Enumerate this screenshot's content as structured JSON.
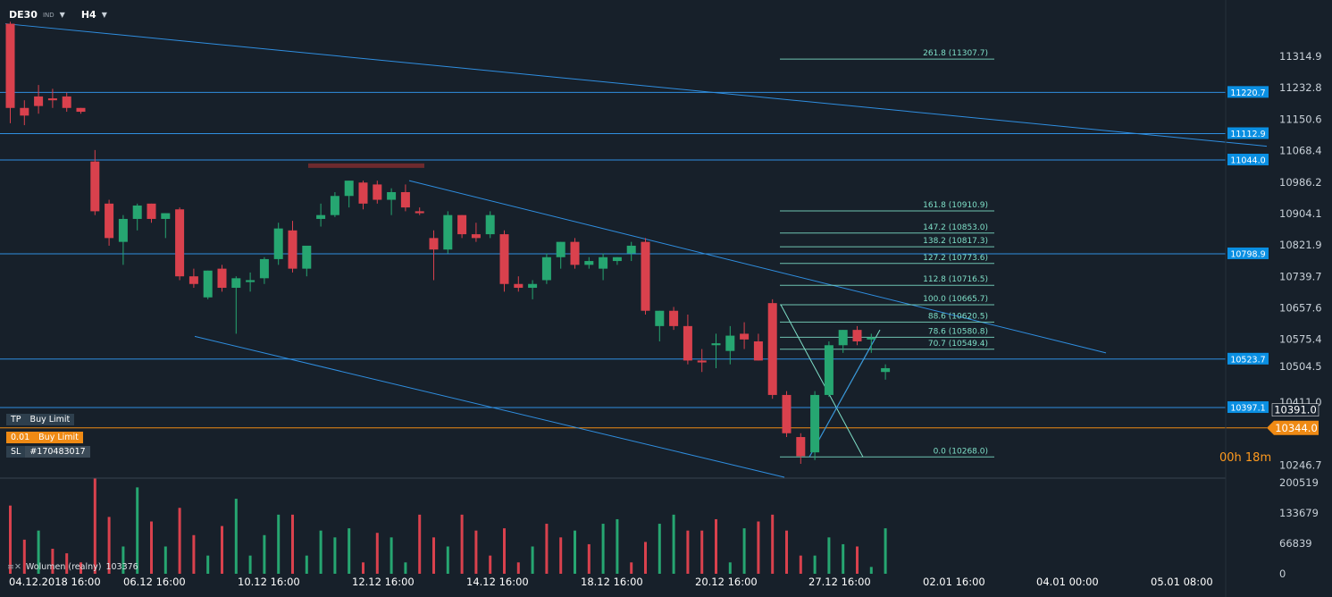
{
  "header": {
    "symbol": "DE30",
    "symbol_sub": "IND",
    "timeframe": "H4"
  },
  "colors": {
    "background": "#17202a",
    "up": "#26a671",
    "down": "#d9414d",
    "channel": "#2f8ee0",
    "fib": "#7fe0c8",
    "badge": "#0a8fe2",
    "buy_limit": "#ef8a14",
    "grid_text": "#c8d0d8"
  },
  "chart_data": {
    "type": "candlestick",
    "symbol": "DE30",
    "timeframe": "H4",
    "ylim": [
      10215,
      11420
    ],
    "y_ticks": [
      11314.9,
      11232.8,
      11150.6,
      11068.4,
      10986.2,
      10904.1,
      10821.9,
      10739.7,
      10657.6,
      10575.4,
      10504.5,
      10411.0,
      10246.7
    ],
    "x_ticks": [
      "04.12.2018 16:00",
      "06.12 16:00",
      "10.12 16:00",
      "12.12 16:00",
      "14.12 16:00",
      "18.12 16:00",
      "20.12 16:00",
      "27.12 16:00",
      "02.01 16:00",
      "04.01 00:00",
      "05.01 08:00"
    ],
    "candles": [
      [
        11400,
        11405,
        11140,
        11180
      ],
      [
        11180,
        11200,
        11135,
        11160
      ],
      [
        11210,
        11240,
        11165,
        11185
      ],
      [
        11205,
        11230,
        11180,
        11200
      ],
      [
        11210,
        11220,
        11170,
        11180
      ],
      [
        11180,
        11180,
        11165,
        11170
      ],
      [
        11040,
        11070,
        10900,
        10910
      ],
      [
        10930,
        10940,
        10820,
        10840
      ],
      [
        10830,
        10900,
        10770,
        10890
      ],
      [
        10890,
        10930,
        10860,
        10925
      ],
      [
        10930,
        10930,
        10880,
        10890
      ],
      [
        10890,
        10905,
        10840,
        10905
      ],
      [
        10915,
        10920,
        10730,
        10740
      ],
      [
        10740,
        10760,
        10710,
        10720
      ],
      [
        10685,
        10755,
        10680,
        10755
      ],
      [
        10760,
        10770,
        10700,
        10710
      ],
      [
        10710,
        10740,
        10590,
        10735
      ],
      [
        10725,
        10750,
        10700,
        10730
      ],
      [
        10735,
        10790,
        10720,
        10785
      ],
      [
        10785,
        10880,
        10770,
        10865
      ],
      [
        10860,
        10885,
        10750,
        10760
      ],
      [
        10760,
        10810,
        10740,
        10820
      ],
      [
        10890,
        10930,
        10870,
        10900
      ],
      [
        10900,
        10960,
        10895,
        10950
      ],
      [
        10950,
        10990,
        10920,
        10990
      ],
      [
        10985,
        10990,
        10915,
        10930
      ],
      [
        10980,
        10990,
        10930,
        10940
      ],
      [
        10940,
        10970,
        10900,
        10960
      ],
      [
        10960,
        10980,
        10910,
        10920
      ],
      [
        10910,
        10920,
        10900,
        10905
      ],
      [
        10840,
        10860,
        10730,
        10810
      ],
      [
        10810,
        10910,
        10800,
        10900
      ],
      [
        10900,
        10900,
        10840,
        10850
      ],
      [
        10850,
        10880,
        10830,
        10840
      ],
      [
        10850,
        10910,
        10840,
        10900
      ],
      [
        10850,
        10860,
        10700,
        10720
      ],
      [
        10720,
        10740,
        10700,
        10710
      ],
      [
        10710,
        10730,
        10680,
        10720
      ],
      [
        10730,
        10800,
        10720,
        10790
      ],
      [
        10790,
        10830,
        10760,
        10830
      ],
      [
        10830,
        10840,
        10760,
        10770
      ],
      [
        10770,
        10790,
        10760,
        10780
      ],
      [
        10760,
        10800,
        10730,
        10790
      ],
      [
        10780,
        10790,
        10770,
        10790
      ],
      [
        10800,
        10830,
        10780,
        10820
      ],
      [
        10830,
        10840,
        10640,
        10650
      ],
      [
        10610,
        10650,
        10570,
        10650
      ],
      [
        10650,
        10660,
        10600,
        10610
      ],
      [
        10610,
        10640,
        10510,
        10520
      ],
      [
        10520,
        10550,
        10490,
        10515
      ],
      [
        10560,
        10590,
        10500,
        10565
      ],
      [
        10545,
        10610,
        10510,
        10585
      ],
      [
        10590,
        10620,
        10550,
        10575
      ],
      [
        10570,
        10590,
        10520,
        10520
      ],
      [
        10670,
        10680,
        10420,
        10430
      ],
      [
        10430,
        10440,
        10320,
        10330
      ],
      [
        10320,
        10330,
        10250,
        10270
      ],
      [
        10280,
        10440,
        10260,
        10430
      ],
      [
        10430,
        10570,
        10425,
        10560
      ],
      [
        10560,
        10600,
        10540,
        10600
      ],
      [
        10600,
        10610,
        10560,
        10570
      ],
      [
        10575,
        10590,
        10540,
        10580
      ],
      [
        10490,
        10510,
        10470,
        10500
      ]
    ],
    "volume_ticks": [
      200519,
      133679,
      66839,
      0
    ],
    "volume": [
      {
        "v": 150000,
        "up": false
      },
      {
        "v": 75000,
        "up": false
      },
      {
        "v": 95000,
        "up": true
      },
      {
        "v": 55000,
        "up": false
      },
      {
        "v": 45000,
        "up": false
      },
      {
        "v": 25000,
        "up": false
      },
      {
        "v": 210000,
        "up": false
      },
      {
        "v": 125000,
        "up": false
      },
      {
        "v": 60000,
        "up": true
      },
      {
        "v": 190000,
        "up": true
      },
      {
        "v": 115000,
        "up": false
      },
      {
        "v": 60000,
        "up": true
      },
      {
        "v": 145000,
        "up": false
      },
      {
        "v": 85000,
        "up": false
      },
      {
        "v": 40000,
        "up": true
      },
      {
        "v": 105000,
        "up": false
      },
      {
        "v": 165000,
        "up": true
      },
      {
        "v": 40000,
        "up": true
      },
      {
        "v": 85000,
        "up": true
      },
      {
        "v": 130000,
        "up": true
      },
      {
        "v": 130000,
        "up": false
      },
      {
        "v": 40000,
        "up": true
      },
      {
        "v": 95000,
        "up": true
      },
      {
        "v": 80000,
        "up": true
      },
      {
        "v": 100000,
        "up": true
      },
      {
        "v": 25000,
        "up": false
      },
      {
        "v": 90000,
        "up": false
      },
      {
        "v": 80000,
        "up": true
      },
      {
        "v": 25000,
        "up": true
      },
      {
        "v": 130000,
        "up": false
      },
      {
        "v": 80000,
        "up": false
      },
      {
        "v": 60000,
        "up": true
      },
      {
        "v": 130000,
        "up": false
      },
      {
        "v": 95000,
        "up": false
      },
      {
        "v": 40000,
        "up": false
      },
      {
        "v": 100000,
        "up": false
      },
      {
        "v": 25000,
        "up": false
      },
      {
        "v": 60000,
        "up": true
      },
      {
        "v": 110000,
        "up": false
      },
      {
        "v": 80000,
        "up": false
      },
      {
        "v": 95000,
        "up": true
      },
      {
        "v": 65000,
        "up": false
      },
      {
        "v": 110000,
        "up": true
      },
      {
        "v": 120000,
        "up": true
      },
      {
        "v": 25000,
        "up": false
      },
      {
        "v": 70000,
        "up": false
      },
      {
        "v": 110000,
        "up": true
      },
      {
        "v": 130000,
        "up": true
      },
      {
        "v": 95000,
        "up": false
      },
      {
        "v": 95000,
        "up": false
      },
      {
        "v": 120000,
        "up": false
      },
      {
        "v": 25000,
        "up": true
      },
      {
        "v": 100000,
        "up": true
      },
      {
        "v": 115000,
        "up": false
      },
      {
        "v": 130000,
        "up": false
      },
      {
        "v": 95000,
        "up": false
      },
      {
        "v": 40000,
        "up": false
      },
      {
        "v": 40000,
        "up": true
      },
      {
        "v": 80000,
        "up": true
      },
      {
        "v": 65000,
        "up": true
      },
      {
        "v": 60000,
        "up": false
      },
      {
        "v": 15000,
        "up": true
      },
      {
        "v": 100000,
        "up": true
      }
    ],
    "horizontal_levels": [
      {
        "price": 11220.7,
        "label": "11220.7"
      },
      {
        "price": 11112.9,
        "label": "11112.9"
      },
      {
        "price": 11044.0,
        "label": "11044.0"
      },
      {
        "price": 10798.9,
        "label": "10798.9"
      },
      {
        "price": 10523.7,
        "label": "10523.7"
      },
      {
        "price": 10397.1,
        "label": "10397.1"
      }
    ],
    "current_price": {
      "price": 10391.0,
      "label": "10391.0"
    },
    "buy_limit_price": {
      "price": 10344.0,
      "label": "10344.0"
    },
    "fib_levels": [
      {
        "price": 11307.7,
        "label": "261.8 (11307.7)"
      },
      {
        "price": 10910.9,
        "label": "161.8 (10910.9)"
      },
      {
        "price": 10853.0,
        "label": "147.2 (10853.0)"
      },
      {
        "price": 10817.3,
        "label": "138.2 (10817.3)"
      },
      {
        "price": 10773.6,
        "label": "127.2 (10773.6)"
      },
      {
        "price": 10716.5,
        "label": "112.8 (10716.5)"
      },
      {
        "price": 10665.7,
        "label": "100.0 (10665.7)"
      },
      {
        "price": 10620.5,
        "label": "88.6 (10620.5)"
      },
      {
        "price": 10580.8,
        "label": "78.6 (10580.8)"
      },
      {
        "price": 10549.4,
        "label": "70.7 (10549.4)"
      },
      {
        "price": 10268.0,
        "label": "0.0 (10268.0)"
      }
    ],
    "timer": "00h 18m",
    "volume_label": "Wolumen (realny)",
    "volume_value": "103376"
  },
  "orders": {
    "tp": {
      "tag": "TP",
      "label": "Buy Limit"
    },
    "buy": {
      "tag": "0.01",
      "label": "Buy Limit"
    },
    "sl": {
      "tag": "SL",
      "label": "#170483017"
    }
  }
}
